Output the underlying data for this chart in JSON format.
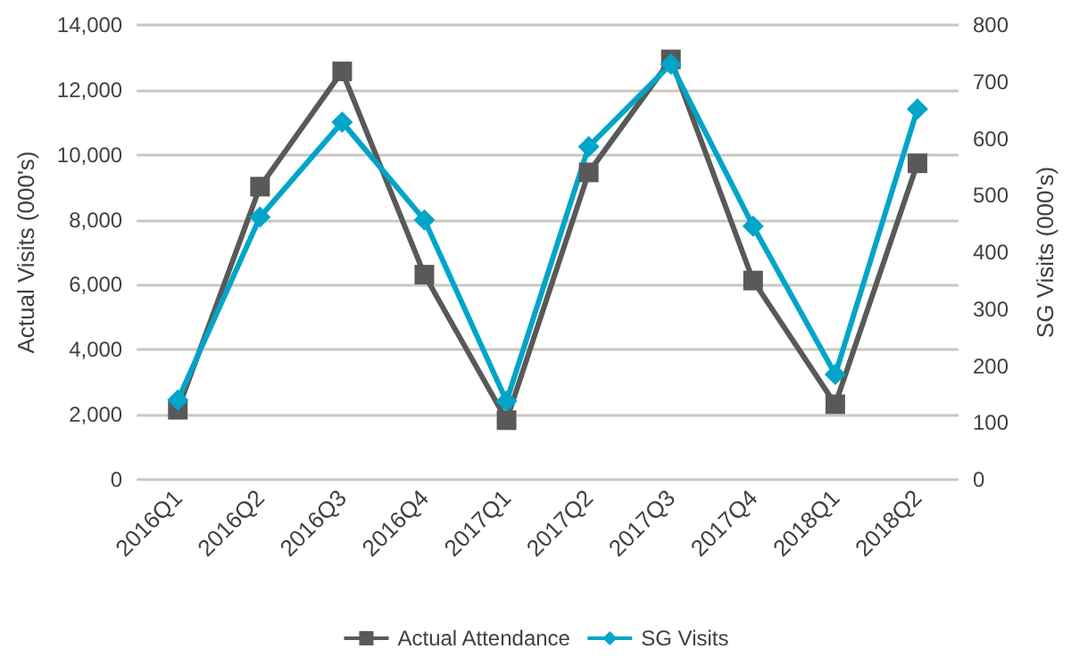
{
  "chart_data": {
    "type": "line",
    "ylabel": "Actual Visits (000's)",
    "y2label": "SG Visits (000's)",
    "categories": [
      "2016Q1",
      "2016Q2",
      "2016Q3",
      "2016Q4",
      "2017Q1",
      "2017Q2",
      "2017Q3",
      "2017Q4",
      "2018Q1",
      "2018Q2"
    ],
    "series": [
      {
        "name": "Actual Attendance",
        "color": "#595959",
        "marker": "square",
        "values": [
          2150,
          9020,
          12570,
          6310,
          1830,
          9460,
          12940,
          6130,
          2320,
          9740
        ]
      },
      {
        "name": "SG Visits",
        "color": "#00a5c8",
        "marker": "diamond",
        "axis": "y2",
        "values": [
          140,
          462,
          629,
          457,
          138,
          586,
          731,
          446,
          185,
          652
        ]
      }
    ],
    "ylim": [
      0,
      14000
    ],
    "yticks": [
      0,
      {
        "value": 2000,
        "label": "2,000"
      },
      {
        "value": 4000,
        "label": "4,000"
      },
      {
        "value": 6000,
        "label": "6,000"
      },
      {
        "value": 8000,
        "label": "8,000"
      },
      {
        "value": 10000,
        "label": "10,000"
      },
      {
        "value": 12000,
        "label": "12,000"
      },
      {
        "value": 14000,
        "label": "14,000"
      }
    ],
    "y2lim": [
      0,
      800
    ],
    "y2ticks": [
      0,
      100,
      200,
      300,
      400,
      500,
      600,
      700,
      800
    ],
    "grid": "y",
    "legend": "bottom"
  }
}
